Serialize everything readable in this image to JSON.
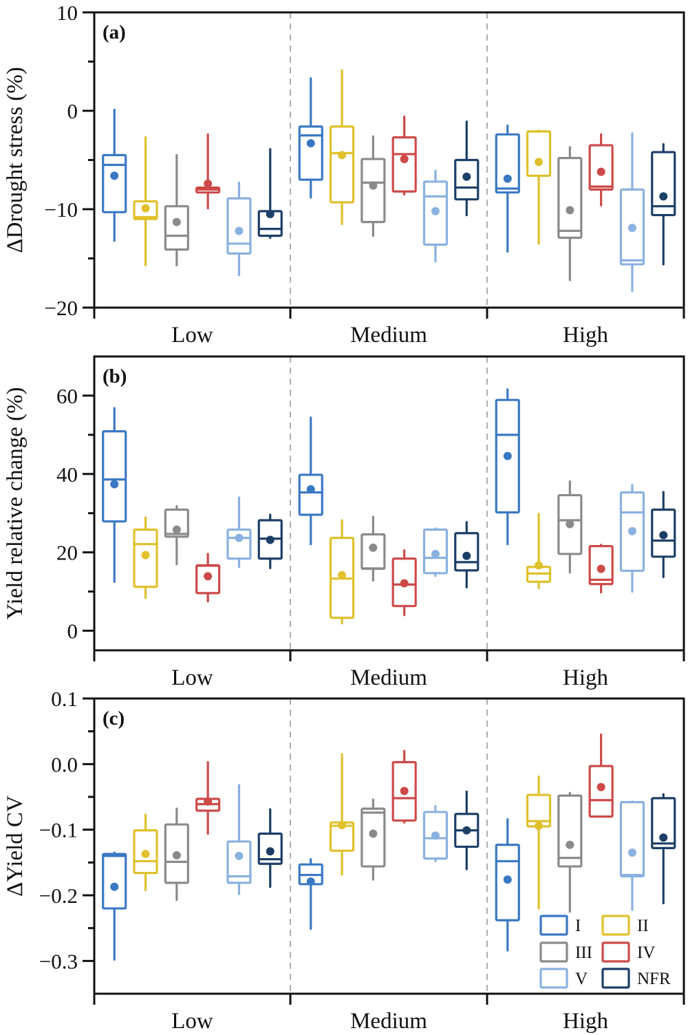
{
  "chart_data": [
    {
      "type": "box",
      "panel_tag": "(a)",
      "title": "",
      "xlabel": "",
      "ylabel": "ΔDrought stress (%)",
      "ylim": [
        -20,
        10
      ],
      "yticks": [
        10,
        0,
        -10,
        -20
      ],
      "ytick_labels": [
        "10",
        "0",
        "−10",
        "−20"
      ],
      "yminor": [
        5,
        -5,
        -15
      ],
      "categories": [
        "Low",
        "Medium",
        "High"
      ],
      "grid": false,
      "series": [
        {
          "name": "I",
          "boxes": [
            {
              "whislo": -13.2,
              "q1": -10.3,
              "med": -5.5,
              "q3": -4.5,
              "whishi": 0.1,
              "mean": -6.6
            },
            {
              "whislo": -8.8,
              "q1": -7.0,
              "med": -2.5,
              "q3": -1.6,
              "whishi": 3.3,
              "mean": -3.3
            },
            {
              "whislo": -14.3,
              "q1": -8.3,
              "med": -7.9,
              "q3": -2.4,
              "whishi": -1.5,
              "mean": -6.9
            }
          ]
        },
        {
          "name": "II",
          "boxes": [
            {
              "whislo": -15.7,
              "q1": -11.0,
              "med": -10.8,
              "q3": -9.2,
              "whishi": -2.7,
              "mean": -9.9
            },
            {
              "whislo": -11.5,
              "q1": -9.3,
              "med": -4.3,
              "q3": -1.6,
              "whishi": 4.1,
              "mean": -4.5
            },
            {
              "whislo": -13.5,
              "q1": -6.6,
              "med": -2.1,
              "q3": -2.1,
              "whishi": -2.0,
              "mean": -5.2
            }
          ]
        },
        {
          "name": "III",
          "boxes": [
            {
              "whislo": -15.7,
              "q1": -14.1,
              "med": -12.7,
              "q3": -9.7,
              "whishi": -4.5,
              "mean": -11.3
            },
            {
              "whislo": -12.7,
              "q1": -11.3,
              "med": -7.3,
              "q3": -4.9,
              "whishi": -2.6,
              "mean": -7.6
            },
            {
              "whislo": -17.2,
              "q1": -12.9,
              "med": -12.2,
              "q3": -4.8,
              "whishi": -3.7,
              "mean": -10.1
            }
          ]
        },
        {
          "name": "IV",
          "boxes": [
            {
              "whislo": -9.9,
              "q1": -8.3,
              "med": -8.0,
              "q3": -7.8,
              "whishi": -2.4,
              "mean": -7.4
            },
            {
              "whislo": -8.5,
              "q1": -8.2,
              "med": -4.4,
              "q3": -2.7,
              "whishi": -0.6,
              "mean": -4.9
            },
            {
              "whislo": -9.6,
              "q1": -8.0,
              "med": -7.7,
              "q3": -3.5,
              "whishi": -2.4,
              "mean": -6.2
            }
          ]
        },
        {
          "name": "V",
          "boxes": [
            {
              "whislo": -16.7,
              "q1": -14.5,
              "med": -13.5,
              "q3": -8.9,
              "whishi": -7.3,
              "mean": -12.2
            },
            {
              "whislo": -15.3,
              "q1": -13.6,
              "med": -8.7,
              "q3": -7.2,
              "whishi": -6.1,
              "mean": -10.2
            },
            {
              "whislo": -18.3,
              "q1": -15.6,
              "med": -15.2,
              "q3": -8.0,
              "whishi": -2.3,
              "mean": -11.9
            }
          ]
        },
        {
          "name": "NFR",
          "boxes": [
            {
              "whislo": -12.9,
              "q1": -12.7,
              "med": -12.0,
              "q3": -10.2,
              "whishi": -3.9,
              "mean": -10.5
            },
            {
              "whislo": -10.6,
              "q1": -9.0,
              "med": -7.8,
              "q3": -5.0,
              "whishi": -1.1,
              "mean": -6.7
            },
            {
              "whislo": -15.6,
              "q1": -10.6,
              "med": -9.7,
              "q3": -4.2,
              "whishi": -3.4,
              "mean": -8.7
            }
          ]
        }
      ]
    },
    {
      "type": "box",
      "panel_tag": "(b)",
      "title": "",
      "xlabel": "",
      "ylabel": "Yield relative change (%)",
      "ylim": [
        -5,
        70
      ],
      "yticks": [
        60,
        40,
        20,
        0
      ],
      "ytick_labels": [
        "60",
        "40",
        "20",
        "0"
      ],
      "yminor": [
        50,
        30,
        10
      ],
      "categories": [
        "Low",
        "Medium",
        "High"
      ],
      "grid": false,
      "series": [
        {
          "name": "I",
          "boxes": [
            {
              "whislo": 12.5,
              "q1": 27.9,
              "med": 38.6,
              "q3": 50.9,
              "whishi": 56.8,
              "mean": 37.4
            },
            {
              "whislo": 22.1,
              "q1": 29.6,
              "med": 35.3,
              "q3": 39.8,
              "whishi": 54.4,
              "mean": 36.1
            },
            {
              "whislo": 22.1,
              "q1": 30.2,
              "med": 50.0,
              "q3": 58.9,
              "whishi": 61.6,
              "mean": 44.6
            }
          ]
        },
        {
          "name": "II",
          "boxes": [
            {
              "whislo": 8.4,
              "q1": 11.2,
              "med": 22.1,
              "q3": 25.8,
              "whishi": 28.9,
              "mean": 19.3
            },
            {
              "whislo": 1.9,
              "q1": 3.3,
              "med": 13.3,
              "q3": 23.7,
              "whishi": 28.2,
              "mean": 14.2
            },
            {
              "whislo": 10.9,
              "q1": 12.5,
              "med": 14.6,
              "q3": 16.3,
              "whishi": 29.8,
              "mean": 16.7
            }
          ]
        },
        {
          "name": "III",
          "boxes": [
            {
              "whislo": 17.0,
              "q1": 24.0,
              "med": 24.7,
              "q3": 30.9,
              "whishi": 31.8,
              "mean": 25.8
            },
            {
              "whislo": 12.8,
              "q1": 15.8,
              "med": 15.9,
              "q3": 24.6,
              "whishi": 29.1,
              "mean": 21.2
            },
            {
              "whislo": 14.9,
              "q1": 19.6,
              "med": 28.2,
              "q3": 34.6,
              "whishi": 38.1,
              "mean": 27.2
            }
          ]
        },
        {
          "name": "IV",
          "boxes": [
            {
              "whislo": 7.5,
              "q1": 9.6,
              "med": 16.6,
              "q3": 16.7,
              "whishi": 19.6,
              "mean": 13.9
            },
            {
              "whislo": 4.0,
              "q1": 6.3,
              "med": 11.8,
              "q3": 18.4,
              "whishi": 20.5,
              "mean": 12.1
            },
            {
              "whislo": 9.8,
              "q1": 11.9,
              "med": 13.0,
              "q3": 21.6,
              "whishi": 21.9,
              "mean": 15.8
            }
          ]
        },
        {
          "name": "V",
          "boxes": [
            {
              "whislo": 16.3,
              "q1": 18.4,
              "med": 23.7,
              "q3": 25.8,
              "whishi": 34.0,
              "mean": 23.7
            },
            {
              "whislo": 14.0,
              "q1": 14.7,
              "med": 18.6,
              "q3": 25.8,
              "whishi": 26.1,
              "mean": 19.6
            },
            {
              "whislo": 10.0,
              "q1": 15.3,
              "med": 30.2,
              "q3": 35.3,
              "whishi": 37.2,
              "mean": 25.4
            }
          ]
        },
        {
          "name": "NFR",
          "boxes": [
            {
              "whislo": 16.0,
              "q1": 18.4,
              "med": 23.5,
              "q3": 28.2,
              "whishi": 29.6,
              "mean": 23.2
            },
            {
              "whislo": 11.1,
              "q1": 15.4,
              "med": 17.5,
              "q3": 24.9,
              "whishi": 27.7,
              "mean": 19.1
            },
            {
              "whislo": 13.7,
              "q1": 18.9,
              "med": 23.0,
              "q3": 30.9,
              "whishi": 35.4,
              "mean": 24.4
            }
          ]
        }
      ]
    },
    {
      "type": "box",
      "panel_tag": "(c)",
      "title": "",
      "xlabel": "",
      "ylabel": "ΔYield CV",
      "ylim": [
        -0.35,
        0.1
      ],
      "yticks": [
        0.1,
        0.0,
        -0.1,
        -0.2,
        -0.3
      ],
      "ytick_labels": [
        "0.1",
        "0.0",
        "−0.1",
        "−0.2",
        "−0.3"
      ],
      "yminor": [
        0.05,
        -0.05,
        -0.15,
        -0.25
      ],
      "categories": [
        "Low",
        "Medium",
        "High"
      ],
      "grid": false,
      "series": [
        {
          "name": "I",
          "boxes": [
            {
              "whislo": -0.298,
              "q1": -0.22,
              "med": -0.14,
              "q3": -0.137,
              "whishi": -0.135,
              "mean": -0.187
            },
            {
              "whislo": -0.251,
              "q1": -0.183,
              "med": -0.169,
              "q3": -0.153,
              "whishi": -0.145,
              "mean": -0.179
            },
            {
              "whislo": -0.284,
              "q1": -0.238,
              "med": -0.148,
              "q3": -0.123,
              "whishi": -0.084,
              "mean": -0.176
            }
          ]
        },
        {
          "name": "II",
          "boxes": [
            {
              "whislo": -0.192,
              "q1": -0.166,
              "med": -0.148,
              "q3": -0.101,
              "whishi": -0.077,
              "mean": -0.137
            },
            {
              "whislo": -0.168,
              "q1": -0.132,
              "med": -0.094,
              "q3": -0.089,
              "whishi": 0.015,
              "mean": -0.093
            },
            {
              "whislo": -0.22,
              "q1": -0.095,
              "med": -0.087,
              "q3": -0.047,
              "whishi": -0.019,
              "mean": -0.094
            }
          ]
        },
        {
          "name": "III",
          "boxes": [
            {
              "whislo": -0.207,
              "q1": -0.181,
              "med": -0.149,
              "q3": -0.092,
              "whishi": -0.068,
              "mean": -0.139
            },
            {
              "whislo": -0.176,
              "q1": -0.156,
              "med": -0.074,
              "q3": -0.068,
              "whishi": -0.054,
              "mean": -0.106
            },
            {
              "whislo": -0.225,
              "q1": -0.156,
              "med": -0.143,
              "q3": -0.048,
              "whishi": -0.044,
              "mean": -0.123
            }
          ]
        },
        {
          "name": "IV",
          "boxes": [
            {
              "whislo": -0.106,
              "q1": -0.071,
              "med": -0.061,
              "q3": -0.053,
              "whishi": 0.003,
              "mean": -0.057
            },
            {
              "whislo": -0.089,
              "q1": -0.086,
              "med": -0.052,
              "q3": 0.003,
              "whishi": 0.02,
              "mean": -0.041
            },
            {
              "whislo": -0.08,
              "q1": -0.08,
              "med": -0.055,
              "q3": -0.003,
              "whishi": 0.045,
              "mean": -0.035
            }
          ]
        },
        {
          "name": "V",
          "boxes": [
            {
              "whislo": -0.198,
              "q1": -0.181,
              "med": -0.171,
              "q3": -0.118,
              "whishi": -0.032,
              "mean": -0.14
            },
            {
              "whislo": -0.148,
              "q1": -0.144,
              "med": -0.113,
              "q3": -0.073,
              "whishi": -0.064,
              "mean": -0.109
            },
            {
              "whislo": -0.222,
              "q1": -0.171,
              "med": -0.169,
              "q3": -0.058,
              "whishi": -0.057,
              "mean": -0.135
            }
          ]
        },
        {
          "name": "NFR",
          "boxes": [
            {
              "whislo": -0.187,
              "q1": -0.152,
              "med": -0.145,
              "q3": -0.106,
              "whishi": -0.069,
              "mean": -0.133
            },
            {
              "whislo": -0.16,
              "q1": -0.126,
              "med": -0.101,
              "q3": -0.076,
              "whishi": -0.042,
              "mean": -0.101
            },
            {
              "whislo": -0.212,
              "q1": -0.128,
              "med": -0.121,
              "q3": -0.052,
              "whishi": -0.046,
              "mean": -0.112
            }
          ]
        }
      ]
    }
  ],
  "legend": {
    "placement": "bottom-right of panel (c)",
    "items": [
      {
        "name": "I",
        "color": "#3a78c4"
      },
      {
        "name": "II",
        "color": "#e0c12c"
      },
      {
        "name": "III",
        "color": "#8a8a8a"
      },
      {
        "name": "IV",
        "color": "#cc4a48"
      },
      {
        "name": "V",
        "color": "#8ab1e0"
      },
      {
        "name": "NFR",
        "color": "#1c3f66"
      }
    ]
  },
  "colors": {
    "I": "#3a78c4",
    "II": "#e0c12c",
    "III": "#8a8a8a",
    "IV": "#cc4a48",
    "V": "#8ab1e0",
    "NFR": "#1c3f66",
    "divider": "#8c8c8c",
    "axis": "#111111"
  }
}
